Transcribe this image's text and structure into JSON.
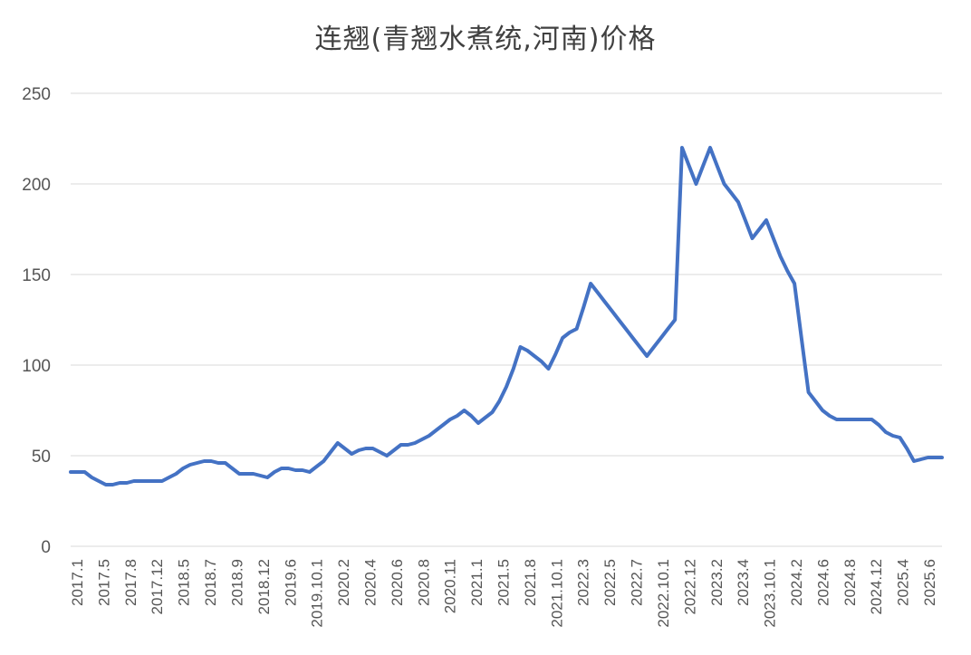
{
  "chart_data": {
    "type": "line",
    "title": "连翘(青翘水煮统,河南)价格",
    "xlabel": "",
    "ylabel": "",
    "ylim": [
      0,
      250
    ],
    "yticks": [
      0,
      50,
      100,
      150,
      200,
      250
    ],
    "grid": true,
    "legend": "none",
    "line_color": "#4472c4",
    "x_tick_labels": [
      "2017.1",
      "2017.5",
      "2017.8",
      "2017.12",
      "2018.5",
      "2018.7",
      "2018.9",
      "2018.12",
      "2019.6",
      "2019.10.1",
      "2020.2",
      "2020.4",
      "2020.6",
      "2020.8",
      "2020.11",
      "2021.1",
      "2021.5",
      "2021.8",
      "2021.10.1",
      "2022.3",
      "2022.5",
      "2022.7",
      "2022.10.1",
      "2022.12",
      "2023.2",
      "2023.4",
      "2023.10.1",
      "2024.2",
      "2024.6",
      "2024.8",
      "2024.12",
      "2025.4",
      "2025.6"
    ],
    "series": [
      {
        "values": [
          41,
          41,
          41,
          38,
          36,
          34,
          34,
          35,
          35,
          36,
          36,
          36,
          36,
          36,
          38,
          40,
          43,
          45,
          46,
          47,
          47,
          46,
          46,
          43,
          40,
          40,
          40,
          39,
          38,
          41,
          43,
          43,
          42,
          42,
          41,
          44,
          47,
          52,
          57,
          54,
          51,
          53,
          54,
          54,
          52,
          50,
          53,
          56,
          56,
          57,
          59,
          61,
          64,
          67,
          70,
          72,
          75,
          72,
          68,
          71,
          74,
          80,
          88,
          98,
          110,
          108,
          105,
          102,
          98,
          106,
          115,
          118,
          120,
          132,
          145,
          140,
          135,
          130,
          125,
          120,
          115,
          110,
          105,
          110,
          115,
          120,
          125,
          220,
          210,
          200,
          210,
          220,
          210,
          200,
          195,
          190,
          180,
          170,
          175,
          180,
          170,
          160,
          152,
          145,
          115,
          85,
          80,
          75,
          72,
          70,
          70,
          70,
          70,
          70,
          70,
          67,
          63,
          61,
          60,
          54,
          47,
          48,
          49,
          49,
          49
        ]
      }
    ]
  }
}
